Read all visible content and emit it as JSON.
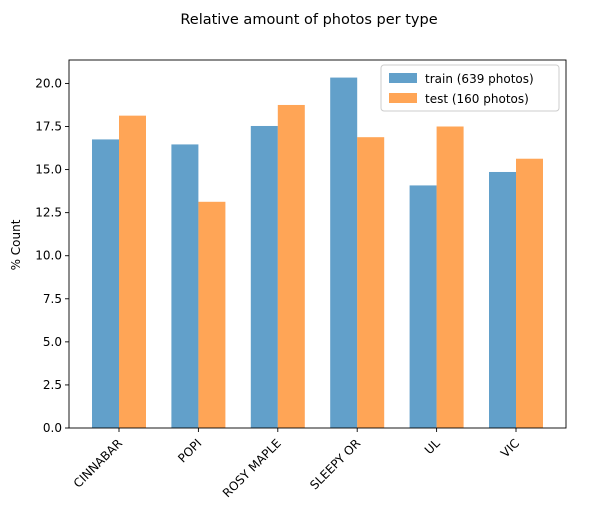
{
  "chart_data": {
    "type": "bar",
    "title": "Relative amount of photos per type",
    "xlabel": "",
    "ylabel": "% Count",
    "categories": [
      "CINNABAR",
      "POPI",
      "ROSY MAPLE",
      "SLEEPY OR",
      "UL",
      "VIC"
    ],
    "series": [
      {
        "name": "train (639 photos)",
        "color": "#1f77b4",
        "values": [
          16.75,
          16.46,
          17.53,
          20.34,
          14.08,
          14.86
        ]
      },
      {
        "name": "test (160 photos)",
        "color": "#ff7f0e",
        "values": [
          18.13,
          13.13,
          18.75,
          16.88,
          17.5,
          15.63
        ]
      }
    ],
    "bar_opacity": 0.7,
    "ylim": [
      0,
      21.36
    ],
    "yticks": [
      0.0,
      2.5,
      5.0,
      7.5,
      10.0,
      12.5,
      15.0,
      17.5,
      20.0
    ],
    "ytick_labels": [
      "0.0",
      "2.5",
      "5.0",
      "7.5",
      "10.0",
      "12.5",
      "15.0",
      "17.5",
      "20.0"
    ],
    "xtick_rotation_deg": 45,
    "legend_position": "top-right",
    "grid": false
  }
}
